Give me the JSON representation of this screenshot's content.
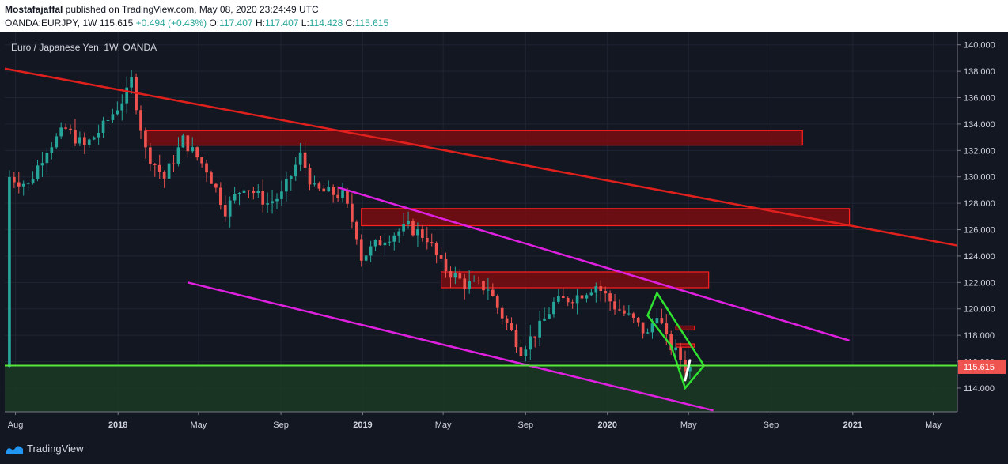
{
  "header": {
    "author": "Mostafajaffal",
    "published_text": "published on TradingView.com, May 08, 2020 23:24:49 UTC",
    "symbol": "OANDA:EURJPY, 1W",
    "last": "115.615",
    "change": "+0.494 (+0.43%)",
    "o_label": "O:",
    "o_value": "117.407",
    "h_label": "H:",
    "h_value": "117.407",
    "l_label": "L:",
    "l_value": "114.428",
    "c_label": "C:",
    "c_value": "115.615"
  },
  "footer": {
    "brand": "TradingView"
  },
  "colors": {
    "background": "#131722",
    "up": "#26a69a",
    "down": "#ef5350",
    "trendline": "#e0201c",
    "channel": "#e020e0",
    "wedge": "#2fe22f",
    "support": "#57e83b",
    "arrow": "#ffffff",
    "price_label": "#ef5350"
  },
  "chart_data": {
    "type": "candlestick",
    "title": "Euro / Japanese Yen, 1W, OANDA",
    "ylim": [
      112.2,
      141.0
    ],
    "y_ticks": [
      "140.000",
      "138.000",
      "136.000",
      "134.000",
      "132.000",
      "130.000",
      "128.000",
      "126.000",
      "124.000",
      "122.000",
      "120.000",
      "118.000",
      "116.000",
      "114.000"
    ],
    "x_ticks": [
      "Aug",
      "2018",
      "May",
      "Sep",
      "2019",
      "May",
      "Sep",
      "2020",
      "May",
      "Sep",
      "2021",
      "May"
    ],
    "current_price_label": "115.615",
    "current_price": 115.615,
    "path_points": [
      [
        "2017-07-30",
        130.0
      ],
      [
        "2017-08-27",
        129.4
      ],
      [
        "2017-09-24",
        132.2
      ],
      [
        "2017-10-22",
        133.6
      ],
      [
        "2017-11-19",
        132.3
      ],
      [
        "2017-12-17",
        133.8
      ],
      [
        "2018-01-21",
        136.3
      ],
      [
        "2018-01-28",
        137.3
      ],
      [
        "2018-02-18",
        132.0
      ],
      [
        "2018-03-18",
        129.9
      ],
      [
        "2018-04-15",
        132.8
      ],
      [
        "2018-05-20",
        130.6
      ],
      [
        "2018-06-17",
        127.5
      ],
      [
        "2018-07-15",
        129.4
      ],
      [
        "2018-08-19",
        128.0
      ],
      [
        "2018-09-09",
        128.6
      ],
      [
        "2018-10-07",
        131.6
      ],
      [
        "2018-10-28",
        129.0
      ],
      [
        "2018-12-09",
        128.6
      ],
      [
        "2018-12-30",
        125.7
      ],
      [
        "2019-01-06",
        123.9
      ],
      [
        "2019-02-10",
        125.4
      ],
      [
        "2019-03-17",
        126.2
      ],
      [
        "2019-04-14",
        125.4
      ],
      [
        "2019-05-05",
        123.3
      ],
      [
        "2019-06-09",
        121.9
      ],
      [
        "2019-07-14",
        121.6
      ],
      [
        "2019-07-28",
        120.1
      ],
      [
        "2019-08-25",
        117.6
      ],
      [
        "2019-09-01",
        116.9
      ],
      [
        "2019-09-29",
        118.6
      ],
      [
        "2019-10-20",
        120.4
      ],
      [
        "2019-11-24",
        121.0
      ],
      [
        "2019-12-22",
        121.8
      ],
      [
        "2020-01-19",
        120.2
      ],
      [
        "2020-02-16",
        119.1
      ],
      [
        "2020-03-08",
        118.0
      ],
      [
        "2020-03-22",
        119.8
      ],
      [
        "2020-04-05",
        117.6
      ],
      [
        "2020-04-26",
        116.2
      ],
      [
        "2020-05-03",
        115.615
      ]
    ],
    "overlays": {
      "resistance_zones": [
        {
          "x1": "2018-02-11",
          "x2": "2020-10-18",
          "y1": 132.4,
          "y2": 133.5
        },
        {
          "x1": "2018-12-30",
          "x2": "2020-12-27",
          "y1": 126.3,
          "y2": 127.6
        },
        {
          "x1": "2019-04-28",
          "x2": "2020-05-31",
          "y1": 121.6,
          "y2": 122.8
        },
        {
          "x1": "2020-04-12",
          "x2": "2020-05-10",
          "y1": 118.4,
          "y2": 118.7
        },
        {
          "x1": "2020-04-12",
          "x2": "2020-05-10",
          "y1": 117.1,
          "y2": 117.35
        }
      ],
      "trendline": {
        "x1": "2017-07-16",
        "y1": 138.2,
        "x2": "2021-06-06",
        "y2": 124.8
      },
      "channel_upper": {
        "x1": "2018-11-25",
        "y1": 129.2,
        "x2": "2020-12-27",
        "y2": 117.6
      },
      "channel_lower": {
        "x1": "2018-04-15",
        "y1": 122.0,
        "x2": "2020-06-07",
        "y2": 112.3
      },
      "wedge": [
        [
          "2020-03-01",
          119.5
        ],
        [
          "2020-04-05",
          117.2
        ],
        [
          "2020-04-26",
          114.0
        ],
        [
          "2020-05-24",
          115.7
        ],
        [
          "2020-04-26",
          117.9
        ],
        [
          "2020-03-15",
          121.2
        ]
      ],
      "support_level": 115.7,
      "arrow": {
        "x1": "2020-04-26",
        "y1": 114.6,
        "x2": "2020-05-03",
        "y2": 116.1
      }
    }
  }
}
